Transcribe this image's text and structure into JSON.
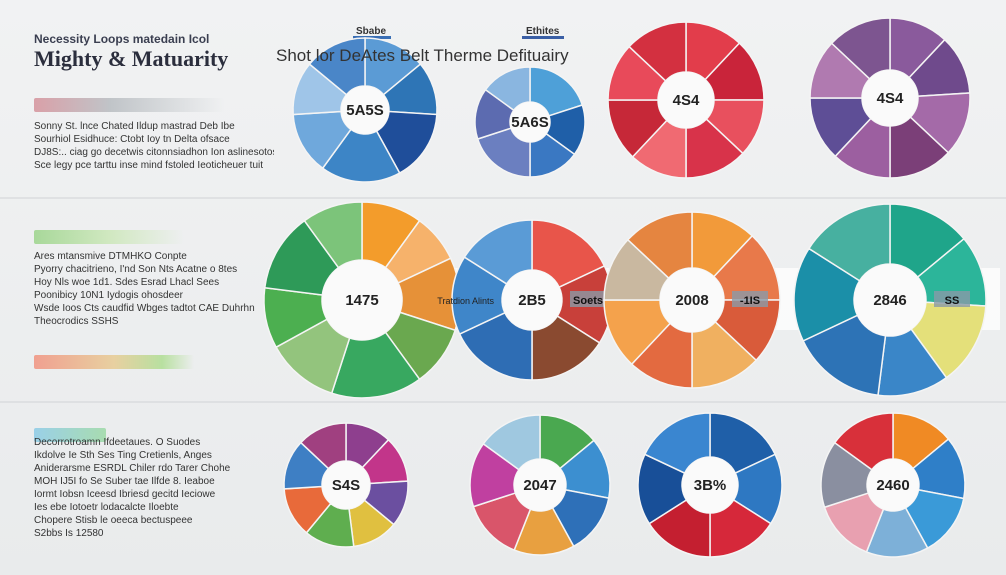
{
  "header": {
    "kicker": "Necessity Loops matedain Icol",
    "title": "Mighty & Matuarity",
    "subtitle": "Shot lor DeAtes Belt Therme Defituairy",
    "column_labels": [
      "Sbabe",
      "Ethites"
    ]
  },
  "left_panel": {
    "sections": [
      {
        "lines": [
          "Sonny St. lnce Chated Ildup mastrad Deb Ibe",
          "Sourhiol Esidhuce: Ctobt Ioy tn Delta ofsace",
          "DJ8S:.. ciag go decetwis citonnsiadhon Ion aslinesotos",
          "Sce legy pce tarttu inse mind fstoled Ieoticheuer tuit"
        ]
      },
      {
        "lines": [
          "Ares mtansmive DTMHKO Conpte",
          "Pyorry chacitrieno, I'nd Son Nts Acatne o 8tes",
          "Hoy Nls woe 1d1. Sdes Esrad Lhacl Sees",
          "Poonibicy 10N1 Iydogis ohosdeer",
          "Wsde Ioos Cts caudfid Wbges tadtot CAE Duhrhn",
          "Theocrodics SSHS"
        ]
      },
      {
        "lines": [
          "Decorrotroamn Ifdeetaues. O Suodes",
          "Ikdolve Ie Sth Ses Ting Cretienls, Anges",
          "Aniderarsme ESRDL Chiler rdo Tarer Chohe",
          "MOH IJ5I fo Se Suber tae Ilfde 8. Ieaboe",
          "Iormt Iobsn Iceesd Ibriesd gecitd Ieciowe",
          "Ies ebe Iotoetr lodacalcte Iloebte",
          "Chopere Stisb le oeeca bectuspeee",
          "S2bbs Is 12580"
        ]
      }
    ]
  },
  "chart_data": [
    {
      "type": "donut",
      "center_label": "5A5S",
      "values": [
        14,
        12,
        16,
        18,
        14,
        12,
        14
      ],
      "colors": [
        "#5b9bd5",
        "#2e75b6",
        "#1f4e9a",
        "#3d85c6",
        "#6fa8dc",
        "#9fc5e8",
        "#4a86c8"
      ]
    },
    {
      "type": "donut",
      "center_label": "5A6S",
      "values": [
        20,
        15,
        15,
        20,
        15,
        15
      ],
      "colors": [
        "#4ea0d8",
        "#1f5fa8",
        "#3a78c2",
        "#6b7fc0",
        "#5c6bb0",
        "#8ab6e0"
      ]
    },
    {
      "type": "donut",
      "center_label": "4S4",
      "values": [
        12,
        13,
        12,
        13,
        12,
        13,
        12,
        13
      ],
      "colors": [
        "#e23d4b",
        "#c9243a",
        "#e8505e",
        "#d8334a",
        "#f06a72",
        "#c62838",
        "#e84a5a",
        "#d33040"
      ]
    },
    {
      "type": "donut",
      "center_label": "4S4",
      "values": [
        12,
        12,
        13,
        13,
        12,
        13,
        12,
        13
      ],
      "colors": [
        "#8a5a9c",
        "#6f4a8c",
        "#a46aa8",
        "#7b3f78",
        "#9c5fa0",
        "#5e4e96",
        "#b07ab0",
        "#7d5590"
      ]
    },
    {
      "type": "donut",
      "center_label": "1475",
      "values": [
        10,
        8,
        12,
        10,
        15,
        12,
        10,
        13,
        10
      ],
      "colors": [
        "#f39c2b",
        "#f6b26b",
        "#e69138",
        "#6aa84f",
        "#38a860",
        "#93c47d",
        "#4caf50",
        "#2e9a58",
        "#7cc47a"
      ]
    },
    {
      "type": "donut",
      "center_label": "2B5",
      "side_label": "Soets",
      "note": "Tratdion Alints",
      "values": [
        18,
        16,
        16,
        18,
        16,
        16
      ],
      "colors": [
        "#e8554a",
        "#c8403a",
        "#8a4a30",
        "#2e6db4",
        "#3f86c9",
        "#5a9bd6"
      ]
    },
    {
      "type": "donut",
      "center_label": "2008",
      "side_label": "-1IS",
      "values": [
        12,
        13,
        12,
        13,
        12,
        13,
        12,
        13
      ],
      "colors": [
        "#f29a3a",
        "#e8794a",
        "#d95b3a",
        "#f0b060",
        "#e36a40",
        "#f4a24c",
        "#c9b8a0",
        "#e58540"
      ]
    },
    {
      "type": "donut",
      "center_label": "2846",
      "side_label": "SS",
      "values": [
        14,
        12,
        14,
        12,
        16,
        16,
        16
      ],
      "colors": [
        "#1fa58a",
        "#2cb59a",
        "#e4e07a",
        "#3a86c8",
        "#2d73b6",
        "#1b8fa8",
        "#47b0a0"
      ]
    },
    {
      "type": "donut",
      "center_label": "S4S",
      "values": [
        12,
        12,
        12,
        12,
        13,
        13,
        13,
        13
      ],
      "colors": [
        "#8e3f8e",
        "#c2358a",
        "#6b4fa0",
        "#e0c040",
        "#5fae4f",
        "#e86a3a",
        "#3e7fc4",
        "#a04080"
      ]
    },
    {
      "type": "donut",
      "center_label": "2047",
      "values": [
        14,
        14,
        14,
        14,
        14,
        15,
        15
      ],
      "colors": [
        "#4aa850",
        "#3c8fd0",
        "#2e70b8",
        "#e8a040",
        "#d9556a",
        "#c040a0",
        "#9fc8e0"
      ]
    },
    {
      "type": "donut",
      "center_label": "3B%",
      "values": [
        18,
        16,
        16,
        16,
        16,
        18
      ],
      "colors": [
        "#1f5fa8",
        "#2e78c2",
        "#d6283a",
        "#c41f30",
        "#184f98",
        "#3a86d0"
      ]
    },
    {
      "type": "donut",
      "center_label": "2460",
      "values": [
        14,
        14,
        14,
        14,
        14,
        15,
        15
      ],
      "colors": [
        "#f08a24",
        "#2f7fc8",
        "#3a9ad8",
        "#7db0d8",
        "#e8a0b0",
        "#8a8fa0",
        "#d8303a"
      ]
    }
  ]
}
